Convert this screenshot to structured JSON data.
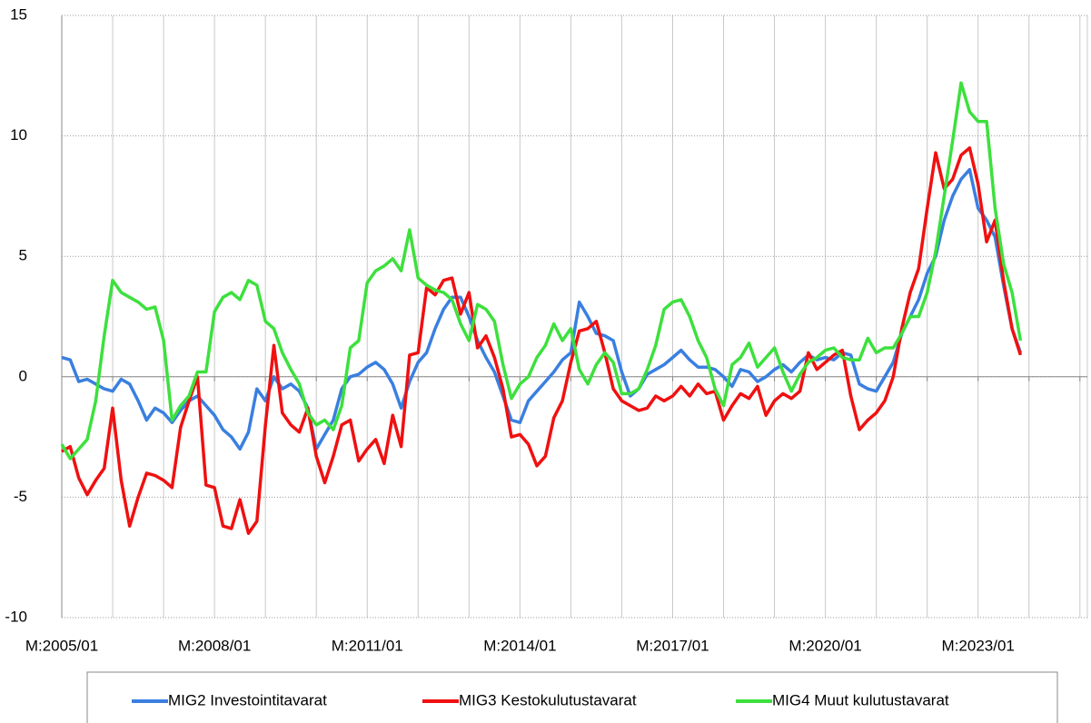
{
  "chart_data": {
    "type": "line",
    "categories": [
      "M:2005/01",
      null,
      null,
      null,
      null,
      null,
      null,
      null,
      null,
      null,
      null,
      null,
      null,
      null,
      null,
      null,
      null,
      null,
      "M:2008/01",
      null,
      null,
      null,
      null,
      null,
      null,
      null,
      null,
      null,
      null,
      null,
      null,
      null,
      null,
      null,
      null,
      null,
      "M:2011/01",
      null,
      null,
      null,
      null,
      null,
      null,
      null,
      null,
      null,
      null,
      null,
      null,
      null,
      null,
      null,
      null,
      null,
      "M:2014/01",
      null,
      null,
      null,
      null,
      null,
      null,
      null,
      null,
      null,
      null,
      null,
      null,
      null,
      null,
      null,
      null,
      null,
      "M:2017/01",
      null,
      null,
      null,
      null,
      null,
      null,
      null,
      null,
      null,
      null,
      null,
      null,
      null,
      null,
      null,
      null,
      null,
      "M:2020/01",
      null,
      null,
      null,
      null,
      null,
      null,
      null,
      null,
      null,
      null,
      null,
      null,
      null,
      null,
      null,
      null,
      null,
      "M:2023/01",
      null,
      null,
      null,
      null,
      null
    ],
    "series": [
      {
        "name": "MIG2 Investointitavarat",
        "color": "#3a7fe0",
        "values": [
          0.8,
          0.7,
          -0.2,
          -0.1,
          -0.3,
          -0.5,
          -0.6,
          -0.1,
          -0.3,
          -1.0,
          -1.8,
          -1.3,
          -1.5,
          -1.9,
          -1.4,
          -1.0,
          -0.8,
          -1.2,
          -1.6,
          -2.2,
          -2.5,
          -3.0,
          -2.3,
          -0.5,
          -1.0,
          0.0,
          -0.5,
          -0.3,
          -0.6,
          -1.3,
          -3.0,
          -2.4,
          -1.8,
          -0.5,
          0.0,
          0.1,
          0.4,
          0.6,
          0.3,
          -0.3,
          -1.3,
          -0.2,
          0.6,
          1.0,
          2.0,
          2.8,
          3.3,
          3.3,
          2.5,
          1.5,
          0.8,
          0.2,
          -0.8,
          -1.8,
          -1.9,
          -1.0,
          -0.6,
          -0.2,
          0.2,
          0.7,
          1.0,
          3.1,
          2.5,
          1.8,
          1.7,
          1.5,
          0.2,
          -0.8,
          -0.5,
          0.1,
          0.3,
          0.5,
          0.8,
          1.1,
          0.7,
          0.4,
          0.4,
          0.3,
          0.0,
          -0.4,
          0.3,
          0.2,
          -0.2,
          0.0,
          0.3,
          0.5,
          0.2,
          0.6,
          0.9,
          0.7,
          0.8,
          0.7,
          1.0,
          0.9,
          -0.3,
          -0.5,
          -0.6,
          0.0,
          0.6,
          1.8,
          2.5,
          3.2,
          4.3,
          5.0,
          6.5,
          7.5,
          8.2,
          8.6,
          7.0,
          6.5,
          5.8,
          3.8,
          2.0,
          1.0
        ]
      },
      {
        "name": "MIG3 Kestokulutustavarat",
        "color": "#f01010",
        "values": [
          -3.1,
          -2.9,
          -4.2,
          -4.9,
          -4.3,
          -3.8,
          -1.3,
          -4.3,
          -6.2,
          -5.0,
          -4.0,
          -4.1,
          -4.3,
          -4.6,
          -2.1,
          -1.0,
          0.0,
          -4.5,
          -4.6,
          -6.2,
          -6.3,
          -5.1,
          -6.5,
          -6.0,
          -2.0,
          1.3,
          -1.5,
          -2.0,
          -2.3,
          -1.3,
          -3.3,
          -4.4,
          -3.3,
          -2.0,
          -1.8,
          -3.5,
          -3.0,
          -2.6,
          -3.6,
          -1.6,
          -2.9,
          0.9,
          1.0,
          3.7,
          3.4,
          4.0,
          4.1,
          2.6,
          3.5,
          1.2,
          1.7,
          0.8,
          -0.5,
          -2.5,
          -2.4,
          -2.8,
          -3.7,
          -3.3,
          -1.7,
          -1.0,
          0.6,
          1.9,
          2.0,
          2.3,
          1.0,
          -0.5,
          -1.0,
          -1.2,
          -1.4,
          -1.3,
          -0.8,
          -1.0,
          -0.8,
          -0.4,
          -0.8,
          -0.3,
          -0.7,
          -0.6,
          -1.8,
          -1.2,
          -0.7,
          -0.9,
          -0.4,
          -1.6,
          -1.0,
          -0.7,
          -0.9,
          -0.6,
          1.0,
          0.3,
          0.6,
          0.9,
          1.1,
          -0.8,
          -2.2,
          -1.8,
          -1.5,
          -1.0,
          0.0,
          2.0,
          3.5,
          4.5,
          7.0,
          9.3,
          7.8,
          8.2,
          9.2,
          9.5,
          8.0,
          5.6,
          6.5,
          4.0,
          2.0,
          0.9
        ]
      },
      {
        "name": "MIG4 Muut kulutustavarat",
        "color": "#3de03d",
        "values": [
          -2.8,
          -3.4,
          -3.0,
          -2.6,
          -1.0,
          1.7,
          4.0,
          3.5,
          3.3,
          3.1,
          2.8,
          2.9,
          1.5,
          -1.8,
          -1.2,
          -0.8,
          0.2,
          0.2,
          2.7,
          3.3,
          3.5,
          3.2,
          4.0,
          3.8,
          2.3,
          2.0,
          1.0,
          0.3,
          -0.3,
          -1.5,
          -2.0,
          -1.8,
          -2.2,
          -1.2,
          1.2,
          1.5,
          3.9,
          4.4,
          4.6,
          4.9,
          4.4,
          6.1,
          4.1,
          3.8,
          3.6,
          3.5,
          3.2,
          2.2,
          1.5,
          3.0,
          2.8,
          2.3,
          0.5,
          -0.9,
          -0.3,
          0.0,
          0.8,
          1.3,
          2.2,
          1.5,
          2.0,
          0.3,
          -0.3,
          0.5,
          1.0,
          0.6,
          -0.7,
          -0.7,
          -0.5,
          0.3,
          1.3,
          2.8,
          3.1,
          3.2,
          2.5,
          1.5,
          0.8,
          -0.5,
          -1.2,
          0.5,
          0.8,
          1.4,
          0.4,
          0.8,
          1.2,
          0.2,
          -0.6,
          0.1,
          0.6,
          0.8,
          1.1,
          1.2,
          0.8,
          0.7,
          0.7,
          1.6,
          1.0,
          1.2,
          1.2,
          1.8,
          2.5,
          2.5,
          3.5,
          5.2,
          7.5,
          9.8,
          12.2,
          11.0,
          10.6,
          10.6,
          7.0,
          4.7,
          3.5,
          1.5
        ]
      }
    ],
    "ylim": [
      -10,
      15
    ],
    "yticks": [
      -10,
      -5,
      0,
      5,
      10,
      15
    ],
    "grid": true,
    "legend": "bottom"
  }
}
